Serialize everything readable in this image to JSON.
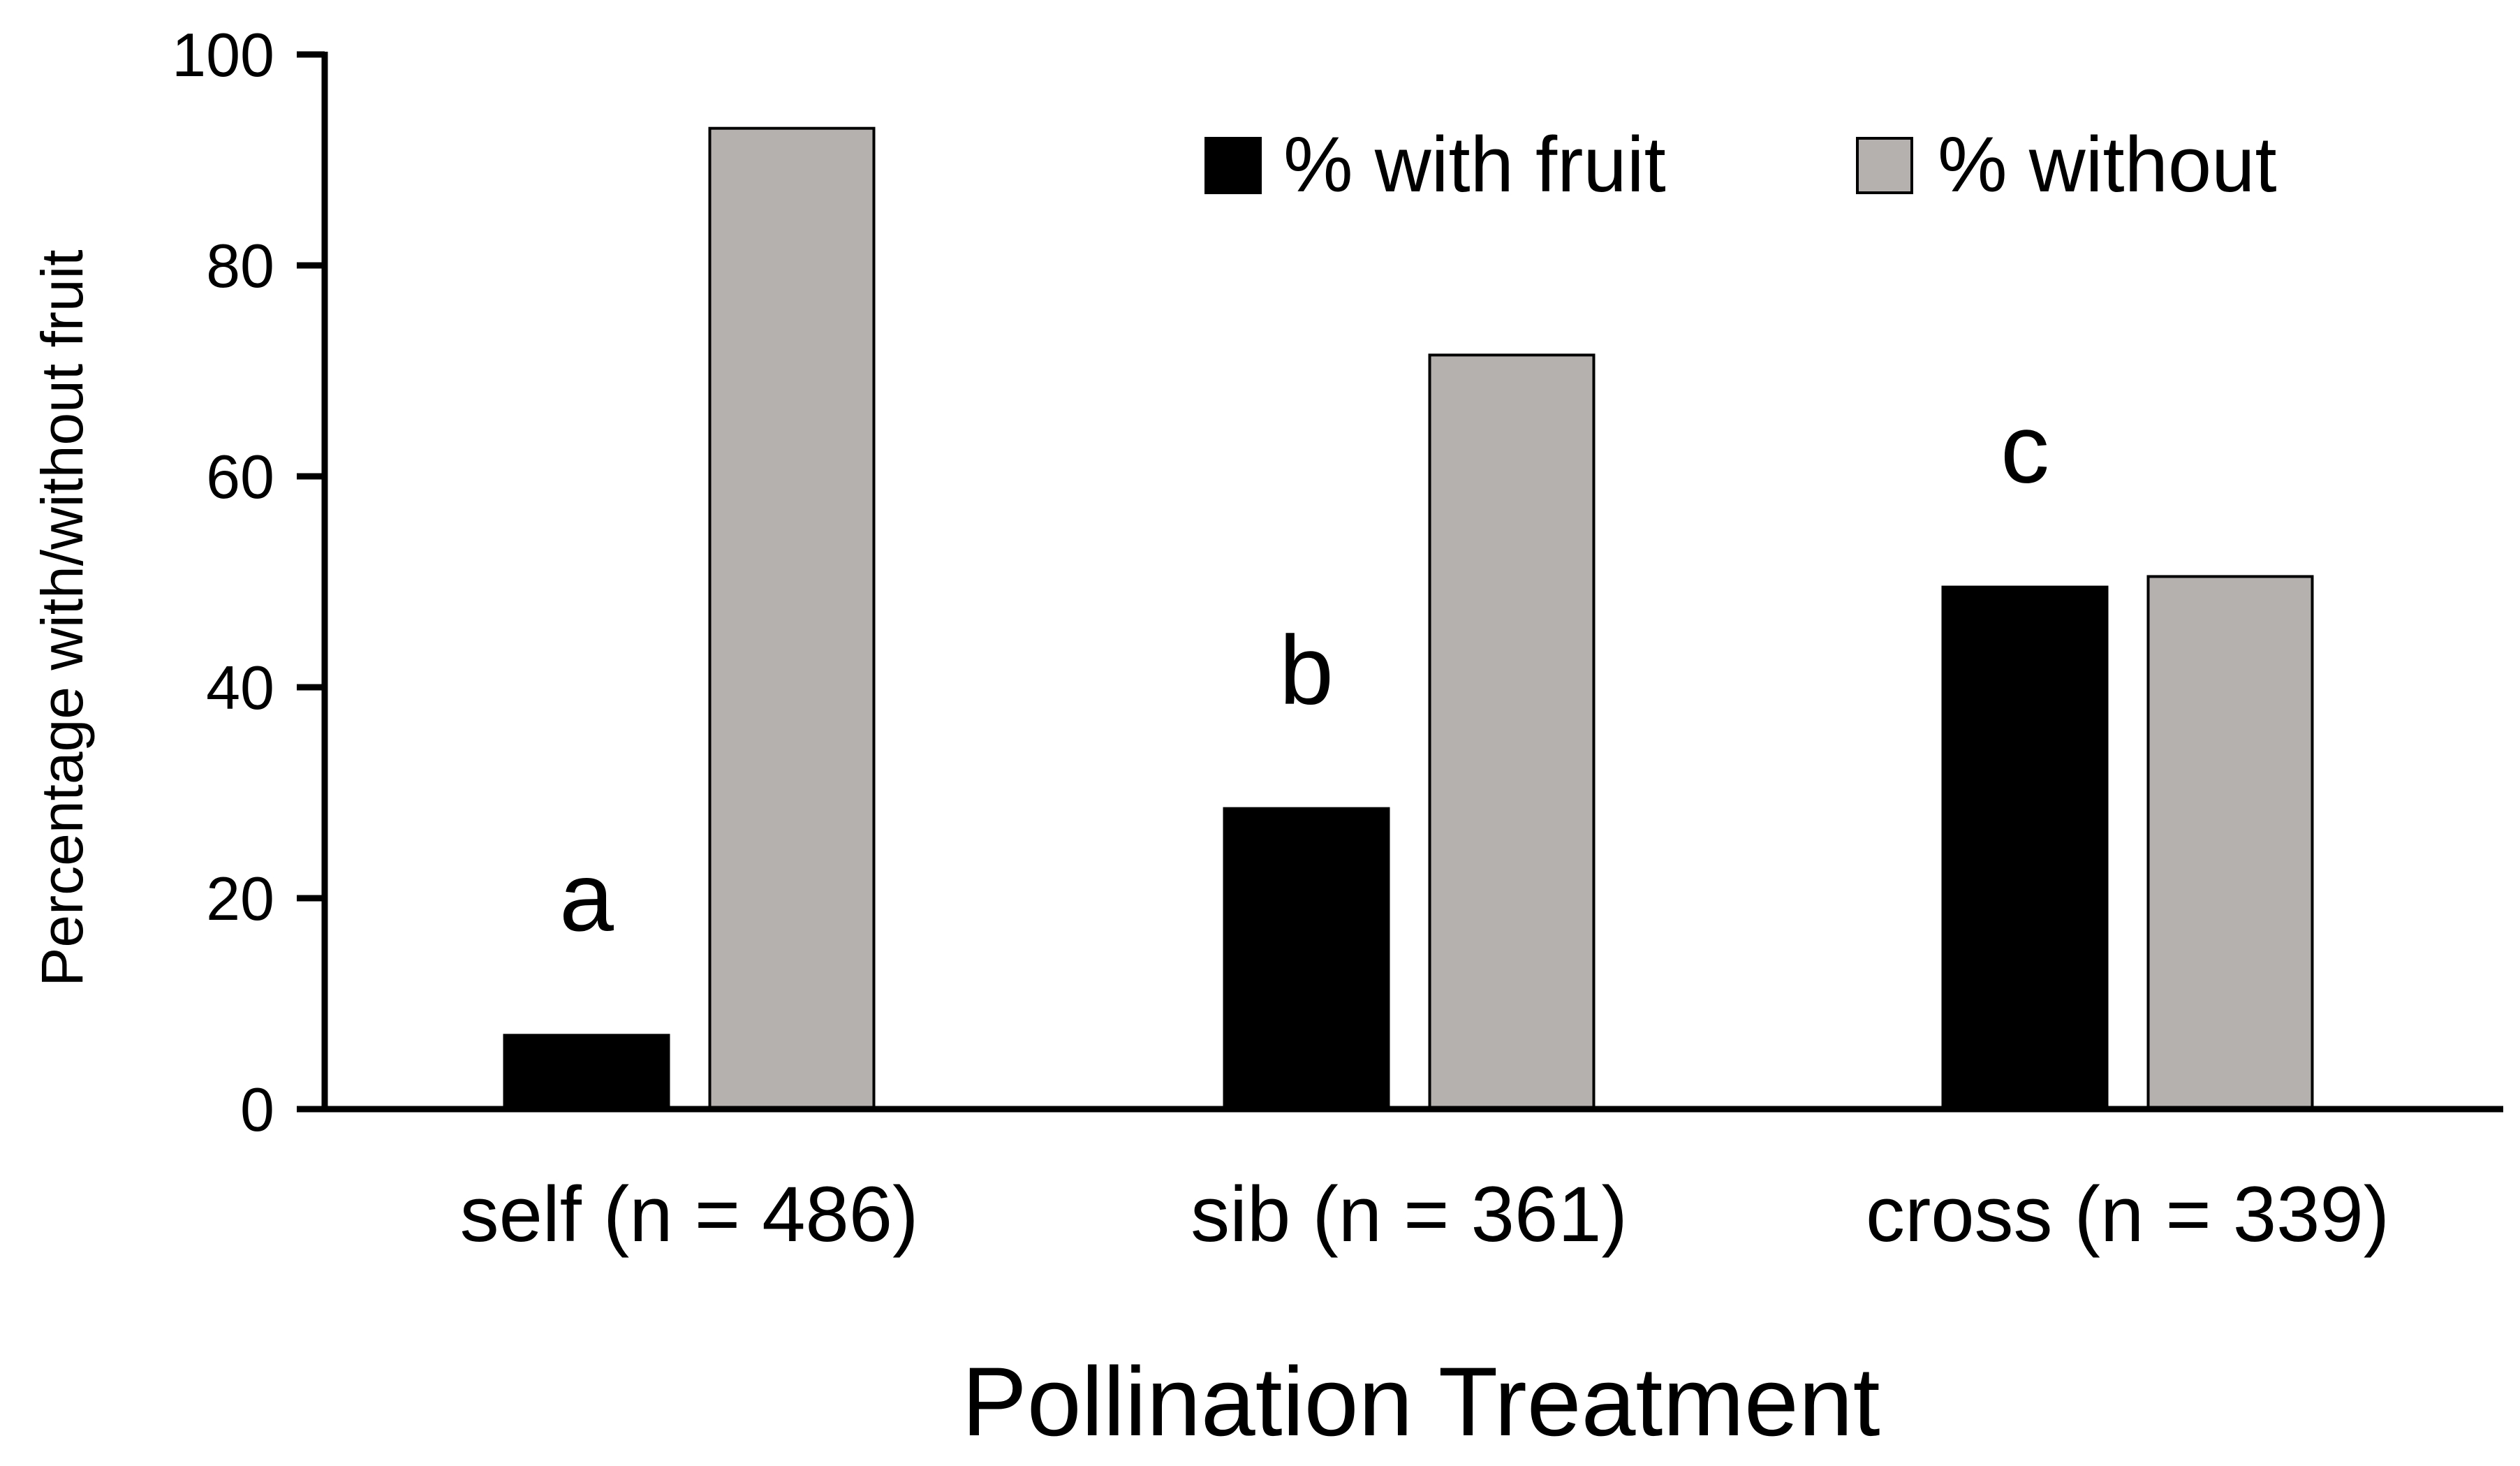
{
  "chart_data": {
    "type": "bar",
    "categories": [
      "self (n = 486)",
      "sib (n = 361)",
      "cross (n = 339)"
    ],
    "series": [
      {
        "name": "% with fruit",
        "color": "#000000",
        "values": [
          7,
          28.5,
          49.5
        ]
      },
      {
        "name": "% without",
        "color": "#b5b1ae",
        "values": [
          93,
          71.5,
          50.5
        ]
      }
    ],
    "significance_letters": [
      "a",
      "b",
      "c"
    ],
    "title": "",
    "xlabel": "Pollination Treatment",
    "ylabel": "Percentage with/without fruit",
    "ylim": [
      0,
      100
    ],
    "yticks": [
      0,
      20,
      40,
      60,
      80,
      100
    ],
    "ytick_labels": [
      "0",
      "20",
      "40",
      "60",
      "80",
      "100"
    ],
    "grid": false,
    "legend_position": "top-right"
  }
}
